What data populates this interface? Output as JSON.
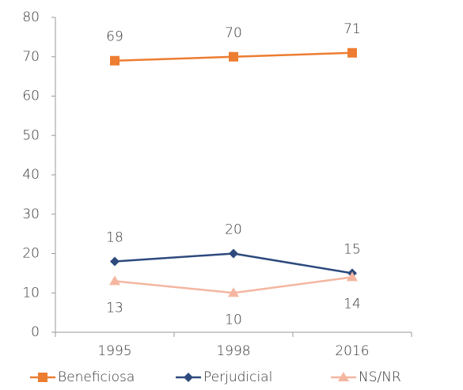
{
  "chart_data": {
    "type": "line",
    "categories": [
      "1995",
      "1998",
      "2016"
    ],
    "series": [
      {
        "name": "Beneficiosa",
        "color": "#ed7d31",
        "marker": "square",
        "label_position": "above",
        "values": [
          69,
          70,
          71
        ]
      },
      {
        "name": "Perjudicial",
        "color": "#2e4a7d",
        "marker": "diamond",
        "label_position": "above",
        "values": [
          18,
          20,
          15
        ]
      },
      {
        "name": "NS/NR",
        "color": "#f4b6a0",
        "marker": "triangle",
        "label_position": "below",
        "values": [
          13,
          10,
          14
        ]
      }
    ],
    "ylim": [
      0,
      80
    ],
    "yticks": [
      0,
      10,
      20,
      30,
      40,
      50,
      60,
      70,
      80
    ],
    "grid": false,
    "legend": "bottom"
  }
}
